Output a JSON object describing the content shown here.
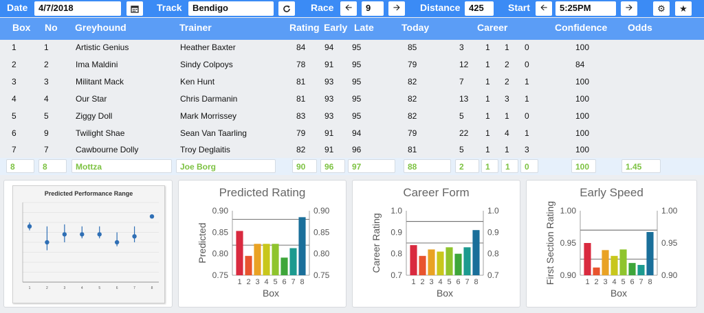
{
  "toolbar": {
    "date_label": "Date",
    "date_value": "4/7/2018",
    "calendar_icon": "calendar-icon",
    "track_label": "Track",
    "track_value": "Bendigo",
    "refresh_icon": "refresh-icon",
    "race_label": "Race",
    "race_value": "9",
    "distance_label": "Distance",
    "distance_value": "425",
    "start_label": "Start",
    "start_value": "5:25PM",
    "settings_icon": "gear-icon",
    "favorite_icon": "star-icon"
  },
  "table": {
    "headers": {
      "box": "Box",
      "no": "No",
      "greyhound": "Greyhound",
      "trainer": "Trainer",
      "rating": "Rating",
      "early": "Early",
      "late": "Late",
      "today": "Today",
      "career": "Career",
      "confidence": "Confidence",
      "odds": "Odds"
    },
    "rows": [
      {
        "box": "1",
        "no": "1",
        "greyhound": "Artistic Genius",
        "trainer": "Heather Baxter",
        "rating": "84",
        "early": "94",
        "late": "95",
        "today": "85",
        "c1": "3",
        "c2": "1",
        "c3": "1",
        "c4": "0",
        "confidence": "100",
        "odds": ""
      },
      {
        "box": "2",
        "no": "2",
        "greyhound": "Ima Maldini",
        "trainer": "Sindy Colpoys",
        "rating": "78",
        "early": "91",
        "late": "95",
        "today": "79",
        "c1": "12",
        "c2": "1",
        "c3": "2",
        "c4": "0",
        "confidence": "84",
        "odds": ""
      },
      {
        "box": "3",
        "no": "3",
        "greyhound": "Militant Mack",
        "trainer": "Ken Hunt",
        "rating": "81",
        "early": "93",
        "late": "95",
        "today": "82",
        "c1": "7",
        "c2": "1",
        "c3": "2",
        "c4": "1",
        "confidence": "100",
        "odds": ""
      },
      {
        "box": "4",
        "no": "4",
        "greyhound": "Our Star",
        "trainer": "Chris Darmanin",
        "rating": "81",
        "early": "93",
        "late": "95",
        "today": "82",
        "c1": "13",
        "c2": "1",
        "c3": "3",
        "c4": "1",
        "confidence": "100",
        "odds": ""
      },
      {
        "box": "5",
        "no": "5",
        "greyhound": "Ziggy Doll",
        "trainer": "Mark Morrissey",
        "rating": "83",
        "early": "93",
        "late": "95",
        "today": "82",
        "c1": "5",
        "c2": "1",
        "c3": "1",
        "c4": "0",
        "confidence": "100",
        "odds": ""
      },
      {
        "box": "6",
        "no": "9",
        "greyhound": "Twilight Shae",
        "trainer": "Sean Van Taarling",
        "rating": "79",
        "early": "91",
        "late": "94",
        "today": "79",
        "c1": "22",
        "c2": "1",
        "c3": "4",
        "c4": "1",
        "confidence": "100",
        "odds": ""
      },
      {
        "box": "7",
        "no": "7",
        "greyhound": "Cawbourne Dolly",
        "trainer": "Troy Deglaitis",
        "rating": "82",
        "early": "91",
        "late": "96",
        "today": "81",
        "c1": "5",
        "c2": "1",
        "c3": "1",
        "c4": "3",
        "confidence": "100",
        "odds": ""
      },
      {
        "box": "8",
        "no": "8",
        "greyhound": "Mottza",
        "trainer": "Joe Borg",
        "rating": "90",
        "early": "96",
        "late": "97",
        "today": "88",
        "c1": "2",
        "c2": "1",
        "c3": "1",
        "c4": "0",
        "confidence": "100",
        "odds": "1.45"
      }
    ]
  },
  "colors": {
    "toolbar": "#3b8bf5",
    "header": "#5b9df6",
    "highlight_text": "#7dc242",
    "bars": [
      "#d92a3f",
      "#e8542e",
      "#e9a224",
      "#c8c71c",
      "#8fc42d",
      "#3ea63a",
      "#1c9a8f",
      "#1a6f9a"
    ]
  },
  "chart_data": [
    {
      "type": "scatter",
      "title": "Predicted Performance Range",
      "x": [
        1,
        2,
        3,
        4,
        5,
        6,
        7,
        8
      ],
      "y": [
        0.84,
        0.8,
        0.82,
        0.82,
        0.82,
        0.8,
        0.815,
        0.865
      ],
      "y_low": [
        0.83,
        0.78,
        0.8,
        0.81,
        0.81,
        0.79,
        0.8,
        0.86
      ],
      "y_high": [
        0.85,
        0.84,
        0.845,
        0.84,
        0.84,
        0.825,
        0.84,
        0.87
      ],
      "ylim": [
        0.7,
        0.9
      ],
      "xticks": [
        "1",
        "2",
        "3",
        "4",
        "5",
        "6",
        "7",
        "8"
      ],
      "grid": true
    },
    {
      "type": "bar",
      "title": "Predicted Rating",
      "ylabel": "Predicted",
      "xlabel": "Box",
      "categories": [
        "1",
        "2",
        "3",
        "4",
        "5",
        "6",
        "7",
        "8"
      ],
      "values": [
        0.853,
        0.795,
        0.823,
        0.823,
        0.823,
        0.791,
        0.813,
        0.885
      ],
      "ylim": [
        0.75,
        0.9
      ],
      "yticks": [
        "0.75",
        "0.80",
        "0.85",
        "0.90"
      ],
      "ref_lines": [
        0.88,
        0.82
      ]
    },
    {
      "type": "bar",
      "title": "Career Form",
      "ylabel": "Career Rating",
      "xlabel": "Box",
      "categories": [
        "1",
        "2",
        "3",
        "4",
        "5",
        "6",
        "7",
        "8"
      ],
      "values": [
        0.84,
        0.79,
        0.82,
        0.81,
        0.83,
        0.8,
        0.83,
        0.91
      ],
      "ylim": [
        0.7,
        1.0
      ],
      "yticks": [
        "0.7",
        "0.8",
        "0.9",
        "1.0"
      ],
      "ref_lines": [
        0.95,
        0.85
      ]
    },
    {
      "type": "bar",
      "title": "Early Speed",
      "ylabel": "First Section Rating",
      "xlabel": "Box",
      "categories": [
        "1",
        "2",
        "3",
        "4",
        "5",
        "6",
        "7",
        "8"
      ],
      "values": [
        0.95,
        0.912,
        0.939,
        0.93,
        0.94,
        0.919,
        0.916,
        0.967
      ],
      "ylim": [
        0.9,
        1.0
      ],
      "yticks": [
        "0.90",
        "0.95",
        "1.00"
      ],
      "ref_lines": [
        0.97,
        0.925
      ]
    }
  ]
}
